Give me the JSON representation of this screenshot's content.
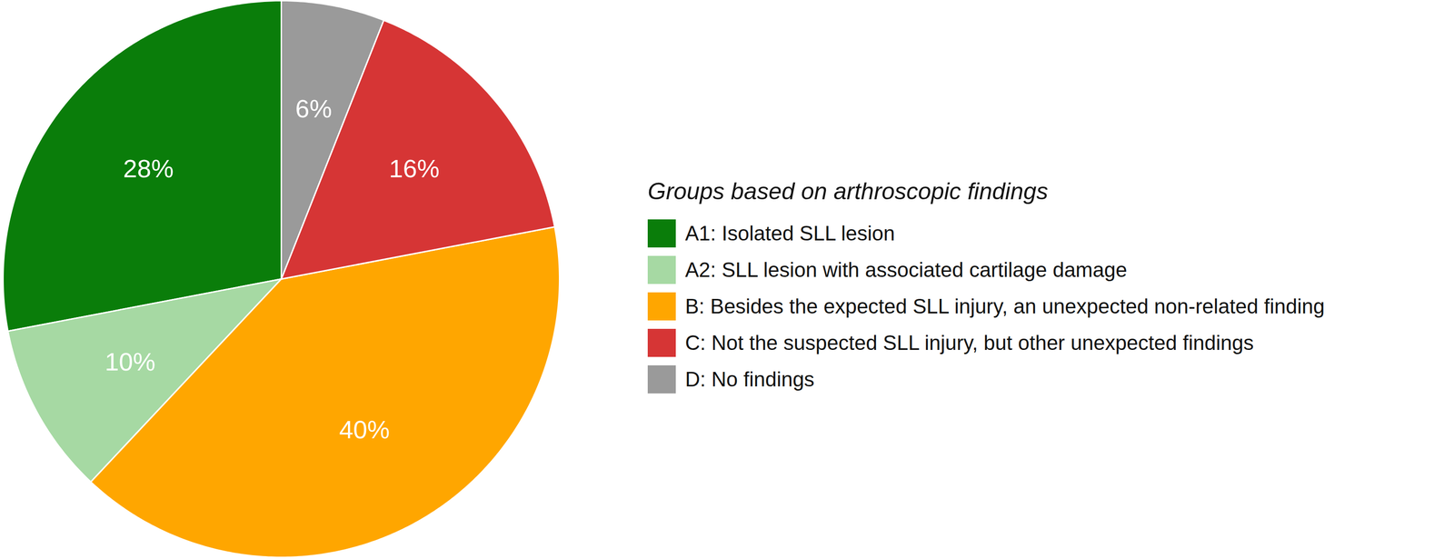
{
  "chart_data": {
    "type": "pie",
    "legend_title": "Groups based on arthroscopic findings",
    "categories": [
      "A1: Isolated SLL lesion",
      "A2: SLL lesion with associated cartilage damage",
      "B: Besides the expected SLL injury, an unexpected non-related finding",
      "C: Not the suspected SLL injury, but other unexpected findings",
      "D: No findings"
    ],
    "values": [
      28,
      10,
      40,
      16,
      6
    ],
    "value_labels": [
      "28%",
      "10%",
      "40%",
      "16%",
      "6%"
    ],
    "colors": [
      "#0a7d0a",
      "#a6d9a3",
      "#ffa600",
      "#d63535",
      "#9a9a9a"
    ],
    "data_labels": true,
    "legend": "right"
  }
}
